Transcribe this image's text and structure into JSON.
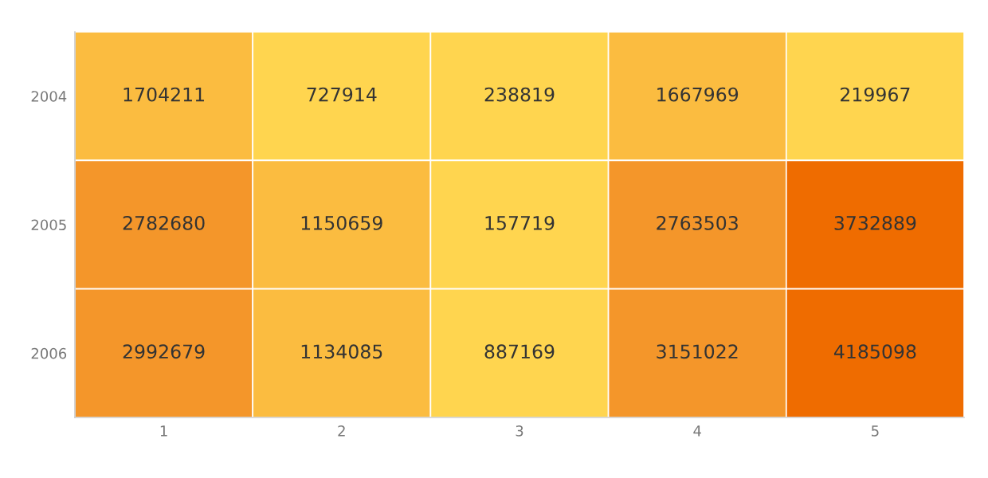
{
  "chart_data": {
    "type": "heatmap",
    "categories": [
      "1",
      "2",
      "3",
      "4",
      "5"
    ],
    "y_categories": [
      "2004",
      "2005",
      "2006"
    ],
    "cells": [
      [
        1704211,
        727914,
        238819,
        1667969,
        219967
      ],
      [
        2782680,
        1150659,
        157719,
        2763503,
        3732889
      ],
      [
        2992679,
        1134085,
        887169,
        3151022,
        4185098
      ]
    ],
    "colors": [
      [
        "#fbbc40",
        "#ffd54f",
        "#ffd54f",
        "#fbbc40",
        "#ffd54f"
      ],
      [
        "#f4962a",
        "#fbbc40",
        "#ffd54f",
        "#f4962a",
        "#ef6c00"
      ],
      [
        "#f4962a",
        "#fbbc40",
        "#ffd54f",
        "#f4962a",
        "#ef6c00"
      ]
    ],
    "data_labels": true
  }
}
